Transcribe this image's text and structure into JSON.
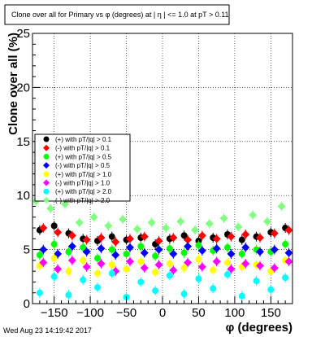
{
  "timestamp": "Wed Aug 23 14:19:42 2017",
  "chart_data": {
    "type": "scatter",
    "title": "Clone  over all for Primary vs φ (degrees) at | η | <= 1.0 at pT > 0.11",
    "xlabel": "φ (degrees)",
    "ylabel": "Clone  over all (%)",
    "xlim": [
      -180,
      180
    ],
    "ylim": [
      0,
      25
    ],
    "xticks": [
      -150,
      -100,
      -50,
      0,
      50,
      100,
      150
    ],
    "yticks": [
      0,
      5,
      10,
      15,
      20,
      25
    ],
    "grid": true,
    "legend_position": "middle-left",
    "series": [
      {
        "name": "(+) with pT/|q| > 0.1",
        "color": "#000000",
        "x": [
          -170,
          -150,
          -130,
          -110,
          -90,
          -70,
          -50,
          -30,
          -10,
          10,
          30,
          50,
          70,
          90,
          110,
          130,
          150,
          170
        ],
        "y": [
          6.8,
          7.2,
          6.5,
          6.0,
          5.8,
          6.2,
          5.9,
          6.1,
          5.5,
          6.0,
          6.3,
          5.8,
          6.1,
          6.4,
          5.9,
          6.2,
          6.6,
          7.0
        ]
      },
      {
        "name": "(-) with pT/|q| > 0.1",
        "color": "#ff0000",
        "x": [
          -165,
          -145,
          -125,
          -105,
          -85,
          -65,
          -45,
          -25,
          -5,
          15,
          35,
          55,
          75,
          95,
          115,
          135,
          155,
          175
        ],
        "y": [
          7.0,
          6.6,
          6.3,
          5.9,
          6.1,
          5.7,
          6.0,
          6.2,
          5.8,
          6.1,
          5.9,
          6.3,
          6.0,
          6.2,
          6.4,
          6.1,
          6.5,
          6.8
        ]
      },
      {
        "name": "(+) with pT/|q| > 0.5",
        "color": "#00ff00",
        "x": [
          -170,
          -150,
          -130,
          -110,
          -90,
          -70,
          -50,
          -30,
          -10,
          10,
          30,
          50,
          70,
          90,
          110,
          130,
          150,
          170
        ],
        "y": [
          4.5,
          5.5,
          4.8,
          5.2,
          4.2,
          5.0,
          4.6,
          5.3,
          4.4,
          5.1,
          4.7,
          5.4,
          4.9,
          5.2,
          4.6,
          5.0,
          4.8,
          5.5
        ]
      },
      {
        "name": "(-) with pT/|q| > 0.5",
        "color": "#0000ff",
        "x": [
          -165,
          -145,
          -125,
          -105,
          -85,
          -65,
          -45,
          -25,
          -5,
          15,
          35,
          55,
          75,
          95,
          115,
          135,
          155,
          175
        ],
        "y": [
          5.0,
          4.6,
          5.3,
          4.8,
          5.1,
          4.5,
          5.2,
          4.7,
          5.0,
          4.6,
          5.3,
          4.9,
          5.1,
          4.6,
          5.2,
          4.8,
          5.0,
          4.7
        ]
      },
      {
        "name": "(+) with pT/|q| > 1.0",
        "color": "#ffff00",
        "x": [
          -170,
          -150,
          -130,
          -110,
          -90,
          -70,
          -50,
          -30,
          -10,
          10,
          30,
          50,
          70,
          90,
          110,
          130,
          150,
          170
        ],
        "y": [
          3.5,
          4.2,
          3.0,
          4.0,
          2.8,
          3.6,
          3.2,
          3.9,
          2.9,
          3.7,
          3.3,
          4.1,
          3.1,
          3.8,
          3.4,
          3.6,
          3.0,
          4.0
        ]
      },
      {
        "name": "(-) with pT/|q| > 1.0",
        "color": "#ff00ff",
        "x": [
          -165,
          -145,
          -125,
          -105,
          -85,
          -65,
          -45,
          -25,
          -5,
          15,
          35,
          55,
          75,
          95,
          115,
          135,
          155,
          175
        ],
        "y": [
          3.8,
          3.2,
          4.0,
          3.4,
          3.7,
          3.0,
          3.9,
          3.3,
          3.6,
          3.1,
          3.8,
          3.4,
          3.9,
          3.2,
          3.7,
          3.5,
          3.3,
          3.9
        ]
      },
      {
        "name": "(+) with pT/|q| > 2.0",
        "color": "#00ffff",
        "x": [
          -170,
          -150,
          -130,
          -110,
          -90,
          -70,
          -50,
          -30,
          -10,
          10,
          30,
          50,
          70,
          90,
          110,
          130,
          150,
          170
        ],
        "y": [
          1.0,
          2.5,
          0.8,
          2.2,
          1.5,
          2.8,
          0.6,
          2.0,
          1.2,
          2.6,
          0.9,
          2.3,
          1.4,
          2.7,
          0.7,
          2.1,
          1.3,
          2.4
        ]
      },
      {
        "name": "(-) with pT/|q| > 2.0",
        "color": "#80ff80",
        "x": [
          -175,
          -155,
          -135,
          -115,
          -95,
          -75,
          -55,
          -35,
          -15,
          5,
          25,
          45,
          65,
          85,
          105,
          125,
          145,
          165
        ],
        "y": [
          9.5,
          8.8,
          9.2,
          7.5,
          8.0,
          7.2,
          7.8,
          6.9,
          7.5,
          7.0,
          7.6,
          6.8,
          7.4,
          7.9,
          7.1,
          8.2,
          7.6,
          9.0
        ]
      }
    ]
  }
}
